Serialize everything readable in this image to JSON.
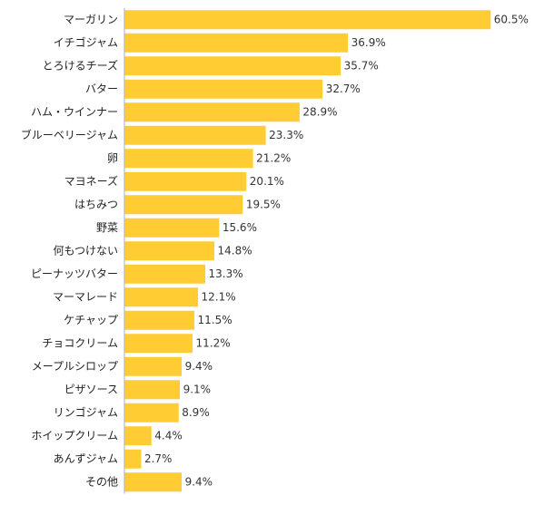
{
  "chart_data": {
    "type": "bar",
    "orientation": "horizontal",
    "categories": [
      "マーガリン",
      "イチゴジャム",
      "とろけるチーズ",
      "バター",
      "ハム・ウインナー",
      "ブルーベリージャム",
      "卵",
      "マヨネーズ",
      "はちみつ",
      "野菜",
      "何もつけない",
      "ピーナッツバター",
      "マーマレード",
      "ケチャップ",
      "チョコクリーム",
      "メープルシロップ",
      "ピザソース",
      "リンゴジャム",
      "ホイップクリーム",
      "あんずジャム",
      "その他"
    ],
    "values": [
      60.5,
      36.9,
      35.7,
      32.7,
      28.9,
      23.3,
      21.2,
      20.1,
      19.5,
      15.6,
      14.8,
      13.3,
      12.1,
      11.5,
      11.2,
      9.4,
      9.1,
      8.9,
      4.4,
      2.7,
      9.4
    ],
    "value_labels": [
      "60.5%",
      "36.9%",
      "35.7%",
      "32.7%",
      "28.9%",
      "23.3%",
      "21.2%",
      "20.1%",
      "19.5%",
      "15.6%",
      "14.8%",
      "13.3%",
      "12.1%",
      "11.5%",
      "11.2%",
      "9.4%",
      "9.1%",
      "8.9%",
      "4.4%",
      "2.7%",
      "9.4%"
    ],
    "unit": "%",
    "xlim": [
      0,
      70
    ],
    "grid": false,
    "colors": {
      "bar": "#FFCC33",
      "axis": "#B0B0B0"
    }
  }
}
